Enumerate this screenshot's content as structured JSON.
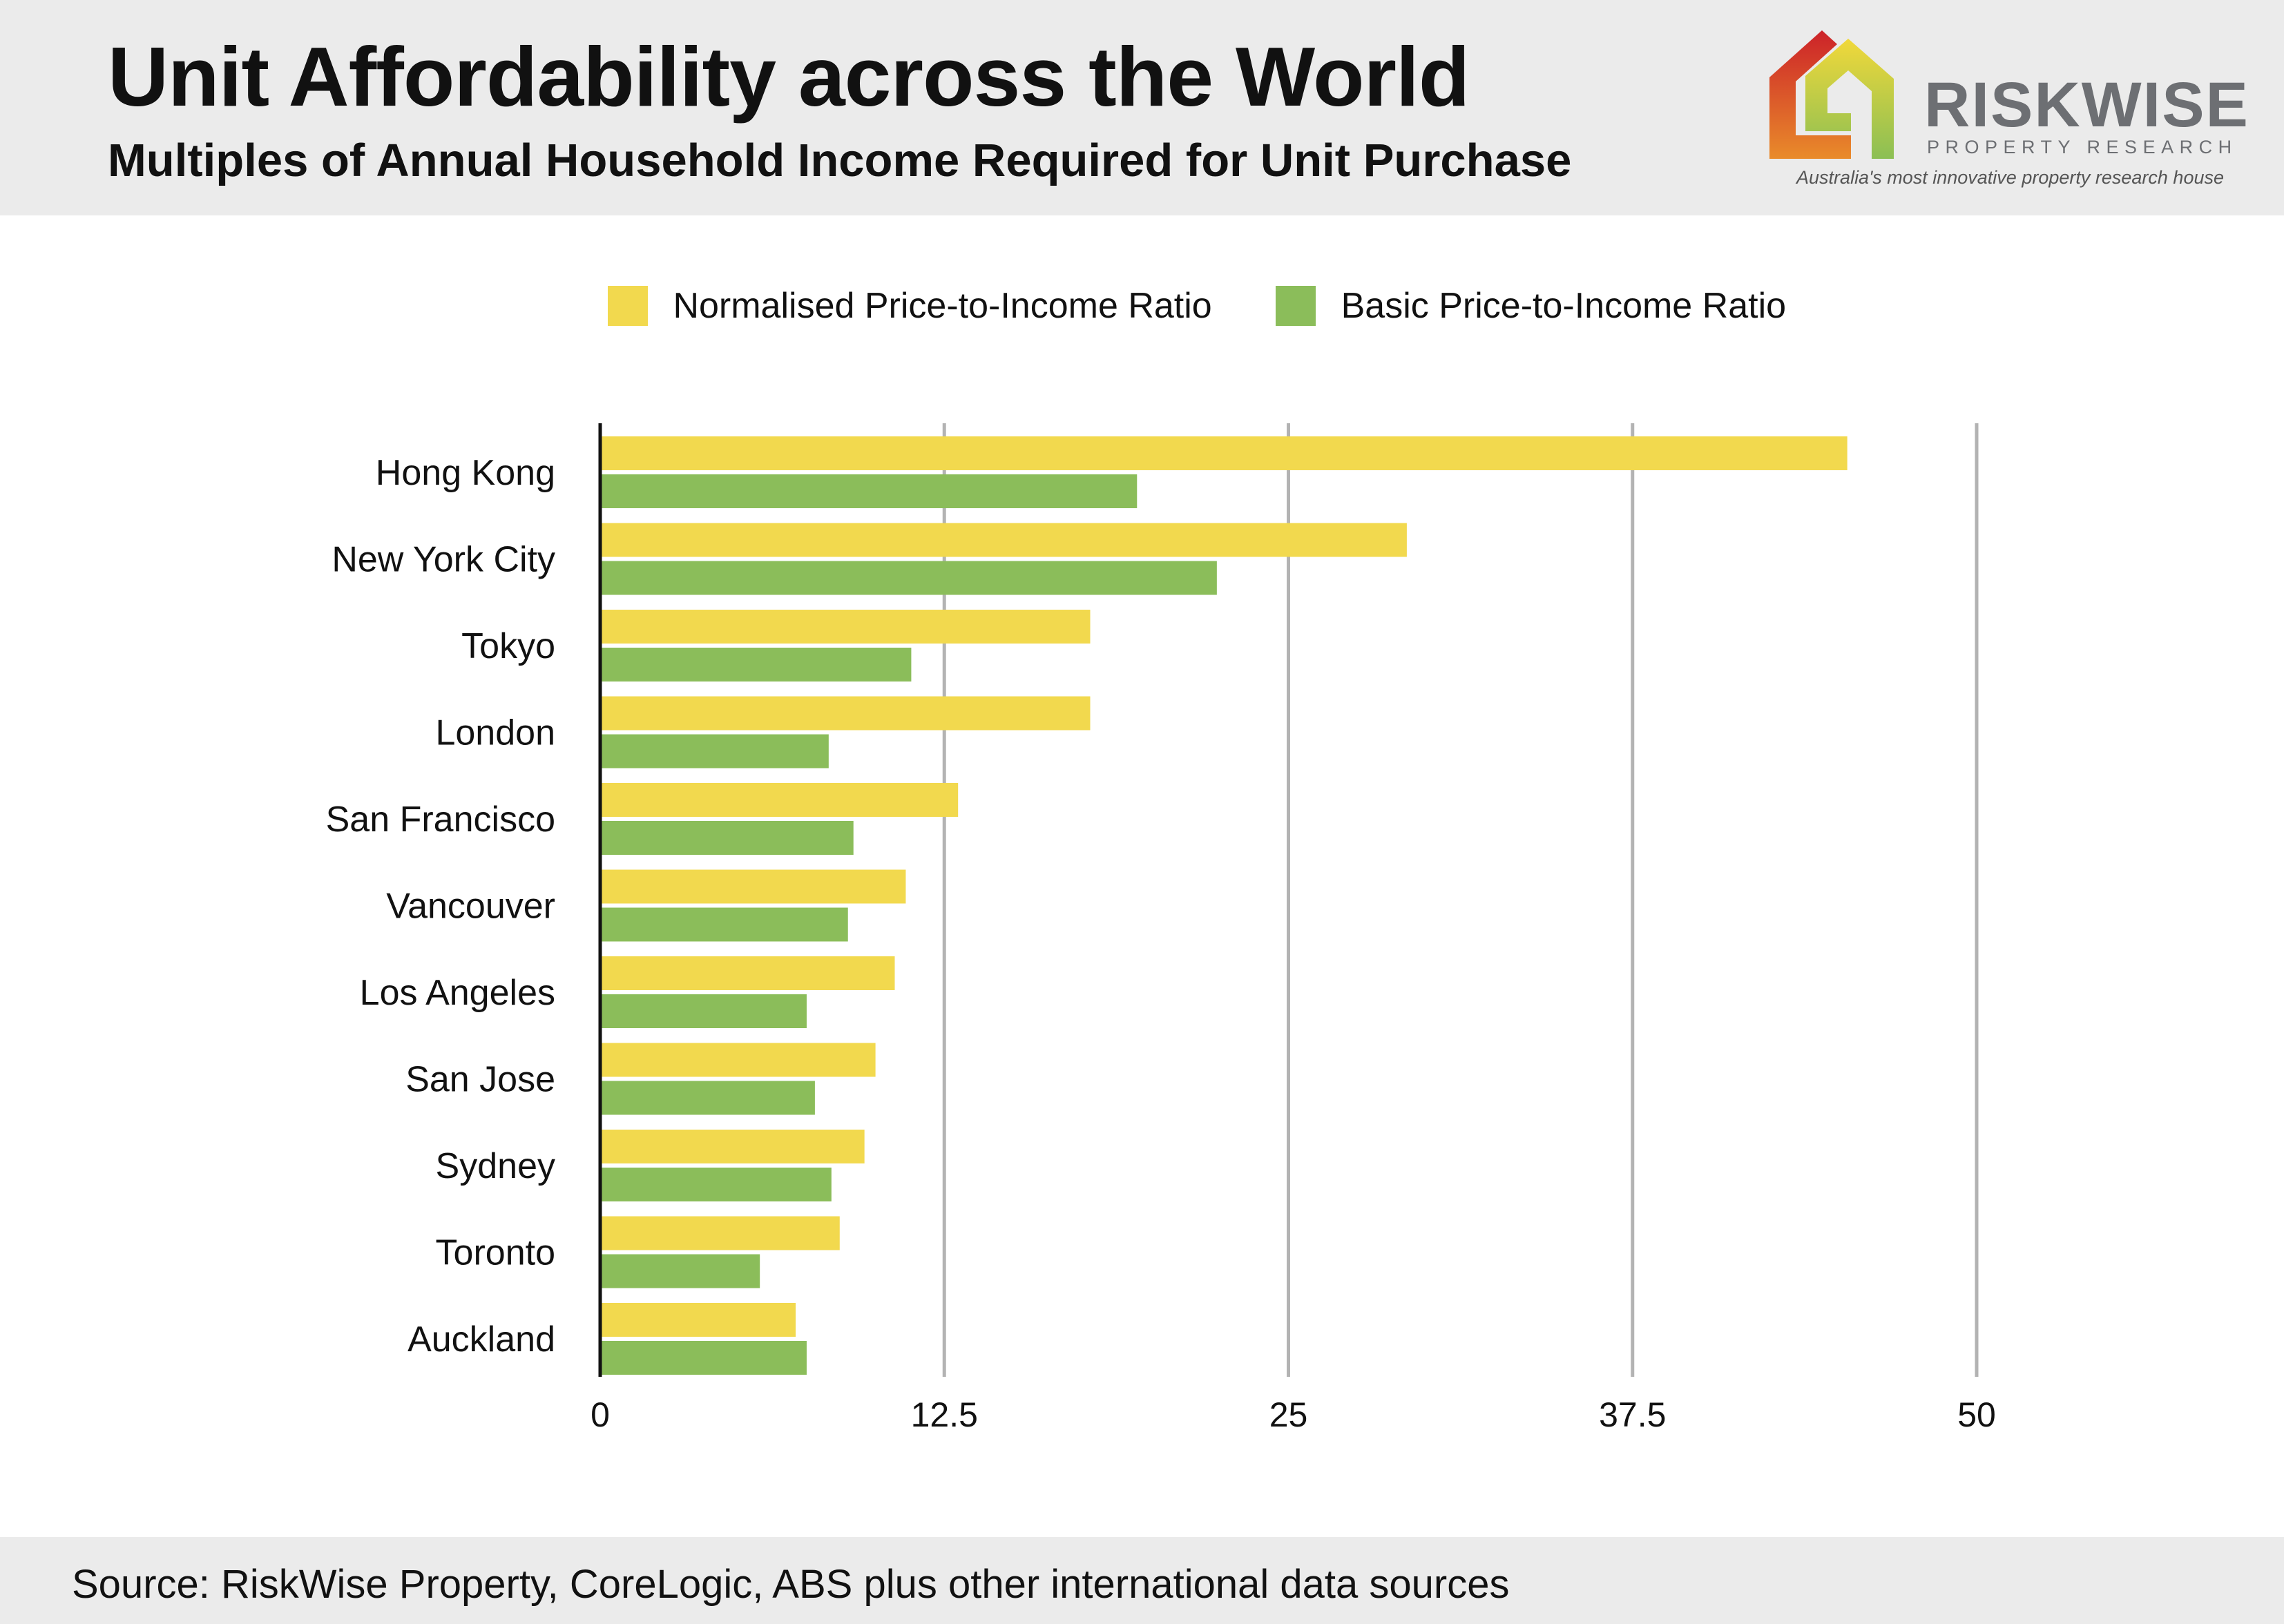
{
  "header": {
    "title": "Unit Affordability across the World",
    "subtitle": "Multiples of Annual Household Income Required for Unit Purchase"
  },
  "logo": {
    "name": "RISKWISE",
    "sub": "PROPERTY RESEARCH",
    "tagline": "Australia's most innovative property research house",
    "colors": [
      "#cc2229",
      "#e98b2a",
      "#f1d83a",
      "#8bbf54"
    ]
  },
  "footer": {
    "source": "Source: RiskWise Property, CoreLogic, ABS plus other international data sources"
  },
  "chart_data": {
    "type": "bar",
    "orientation": "horizontal",
    "title": "",
    "xlabel": "",
    "ylabel": "",
    "categories": [
      "Hong Kong",
      "New York City",
      "Tokyo",
      "London",
      "San Francisco",
      "Vancouver",
      "Los Angeles",
      "San Jose",
      "Sydney",
      "Toronto",
      "Auckland"
    ],
    "series": [
      {
        "name": "Normalised Price-to-Income Ratio",
        "color": "#f2d94e",
        "values": [
          45.3,
          29.3,
          17.8,
          17.8,
          13.0,
          11.1,
          10.7,
          10.0,
          9.6,
          8.7,
          7.1
        ]
      },
      {
        "name": "Basic Price-to-Income Ratio",
        "color": "#8bbd5a",
        "values": [
          19.5,
          22.4,
          11.3,
          8.3,
          9.2,
          9.0,
          7.5,
          7.8,
          8.4,
          5.8,
          7.5
        ]
      }
    ],
    "xlim": [
      0,
      50
    ],
    "xticks": [
      "0",
      "12.5",
      "25",
      "37.5",
      "50"
    ],
    "xtick_values": [
      0,
      12.5,
      25,
      37.5,
      50
    ],
    "grid": "vertical",
    "legend": "top"
  }
}
